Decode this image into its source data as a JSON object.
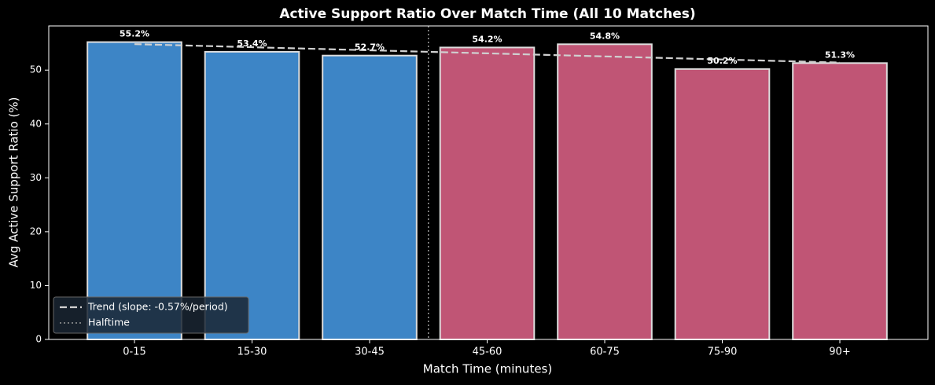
{
  "chart_data": {
    "type": "bar",
    "title": "Active Support Ratio Over Match Time (All 10 Matches)",
    "xlabel": "Match Time (minutes)",
    "ylabel": "Avg Active Support Ratio (%)",
    "categories": [
      "0-15",
      "15-30",
      "30-45",
      "45-60",
      "60-75",
      "75-90",
      "90+"
    ],
    "values": [
      55.2,
      53.4,
      52.7,
      54.2,
      54.8,
      50.2,
      51.3
    ],
    "value_labels": [
      "55.2%",
      "53.4%",
      "52.7%",
      "54.2%",
      "54.8%",
      "50.2%",
      "51.3%"
    ],
    "colors": [
      "#3d85c6",
      "#3d85c6",
      "#3d85c6",
      "#c05575",
      "#c05575",
      "#c05575",
      "#c05575"
    ],
    "edge_color": "#dddddd",
    "trend": {
      "name": "Trend (slope: -0.57%/period)",
      "color": "#d0d0d0",
      "values": [
        54.82,
        54.25,
        53.68,
        53.11,
        52.54,
        51.97,
        51.4
      ]
    },
    "halftime": {
      "name": "Halftime",
      "x": 2.5,
      "color": "#999999"
    },
    "ylim": [
      0,
      58.2
    ],
    "yticks": [
      0,
      10,
      20,
      30,
      40,
      50
    ],
    "legend": "lower left"
  }
}
